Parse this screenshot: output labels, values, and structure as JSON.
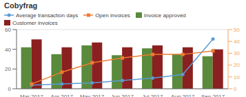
{
  "chart_data": {
    "type": "bar",
    "title": "Cobyfrag",
    "categories": [
      "Mar 2017",
      "Apr 2017",
      "May 2017",
      "Jun 2017",
      "Jul 2017",
      "Aug 2017",
      "Sep 2017"
    ],
    "series": [
      {
        "name": "Average transaction days",
        "type": "line",
        "axis": "y2",
        "color": "#5b9bd5",
        "marker": "circle",
        "values": [
          3,
          4,
          5,
          7,
          9,
          12,
          42
        ]
      },
      {
        "name": "Open invoices",
        "type": "line",
        "axis": "y2",
        "color": "#ed7d31",
        "marker": "square",
        "values": [
          4,
          14,
          22,
          26,
          29,
          29,
          32
        ]
      },
      {
        "name": "Invoice approved",
        "type": "bar",
        "color": "#5a8a3c",
        "values": [
          42,
          35,
          44,
          34,
          41,
          35,
          33
        ]
      },
      {
        "name": "Customer invoices",
        "type": "bar",
        "color": "#8b2020",
        "values": [
          50,
          42,
          47,
          42,
          44,
          42,
          40
        ]
      }
    ],
    "ylim": [
      0,
      60
    ],
    "yticks": [
      0,
      20,
      40,
      60
    ],
    "y2lim": [
      0,
      50
    ],
    "y2ticks": [
      0,
      10,
      20,
      30,
      40,
      50
    ],
    "grid": true
  }
}
